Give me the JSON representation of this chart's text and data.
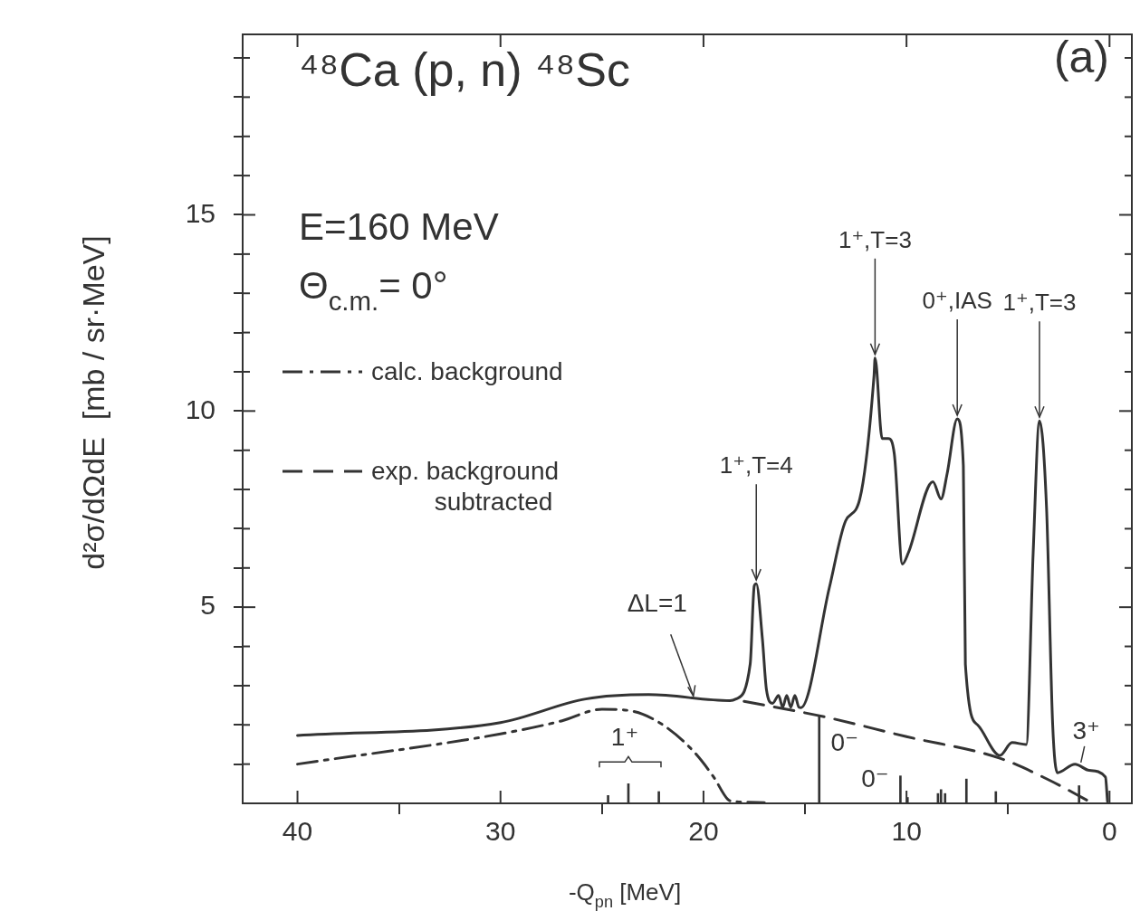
{
  "chart_data": {
    "type": "line",
    "title": "⁴⁸Ca (p, n) ⁴⁸Sc",
    "xlabel": "-Q$_{pn}$ [MeV]",
    "ylabel": "d²σ/dΩdE  [mb / sr·MeV]",
    "xlim": [
      42.7,
      -1.1
    ],
    "ylim": [
      0,
      19.6
    ],
    "xticks": [
      40,
      30,
      20,
      10,
      0
    ],
    "yticks": [
      {
        "value": 1,
        "label": null
      },
      {
        "value": 2,
        "label": null
      },
      {
        "value": 3,
        "label": null
      },
      {
        "value": 4,
        "label": null
      },
      5,
      {
        "value": 6,
        "label": null
      },
      {
        "value": 7,
        "label": null
      },
      {
        "value": 8,
        "label": null
      },
      {
        "value": 9,
        "label": null
      },
      10,
      {
        "value": 11,
        "label": null
      },
      {
        "value": 12,
        "label": null
      },
      {
        "value": 13,
        "label": null
      },
      {
        "value": 14,
        "label": null
      },
      15,
      {
        "value": 16,
        "label": null
      },
      {
        "value": 17,
        "label": null
      },
      {
        "value": 18,
        "label": null
      },
      {
        "value": 19,
        "label": null
      }
    ],
    "grid": false,
    "legend": "left",
    "marker": "none",
    "series": [
      {
        "color": "#333333",
        "line_style": "solid",
        "x": [
          40,
          30,
          25.8,
          22.7,
          18.7,
          18.4,
          17.7,
          17.5,
          17.4,
          17.1,
          16.9,
          16.6,
          16.3,
          16.1,
          15.9,
          15.7,
          15.5,
          15.3,
          15.2,
          13.8,
          13.0,
          12.3,
          11.6,
          11.55,
          11.2,
          10.9,
          10.6,
          10.2,
          9.9,
          8.7,
          8.3,
          8.0,
          7.5,
          7.2,
          7.1,
          6.5,
          5.4,
          4.8,
          4.1,
          3.76,
          3.45,
          3.1,
          2.8,
          2.57,
          1.7,
          1.0,
          0.2,
          0.1
        ],
        "values": [
          1.73,
          2.06,
          2.66,
          2.77,
          2.62,
          2.66,
          3.55,
          5.54,
          5.6,
          4.2,
          2.9,
          2.55,
          2.75,
          2.45,
          2.75,
          2.45,
          2.75,
          2.45,
          2.44,
          5.5,
          7.2,
          7.76,
          10.9,
          11.35,
          9.3,
          9.3,
          8.9,
          6.1,
          6.4,
          8.2,
          7.76,
          8.4,
          9.8,
          8.6,
          3.55,
          2.0,
          1.22,
          1.55,
          1.5,
          6.4,
          9.75,
          7.5,
          2.0,
          0.78,
          1.0,
          0.84,
          0.67,
          0.05
        ]
      },
      {
        "type": "line",
        "name": "calc. background",
        "color": "#333333",
        "line_style": "dashdot",
        "x": [
          40,
          30,
          27,
          25,
          23.5,
          22,
          20.5,
          19.5,
          18.8,
          18.5,
          17
        ],
        "values": [
          1.0,
          1.77,
          2.1,
          2.4,
          2.35,
          2.0,
          1.33,
          0.67,
          0.1,
          0.05,
          0.02
        ]
      },
      {
        "type": "line",
        "name": "exp. background subtracted",
        "color": "#333333",
        "line_style": "dashed",
        "x": [
          18,
          14,
          10,
          5.4,
          3,
          1
        ],
        "values": [
          2.6,
          2.2,
          1.7,
          1.15,
          0.6,
          0.05
        ]
      },
      {
        "type": "bar",
        "color": "#333333",
        "x": [
          24.7,
          23.7,
          22.2,
          14.3,
          10.3,
          9.95,
          8.45,
          8.3,
          8.1,
          7.05,
          5.6,
          1.5
        ],
        "values": [
          0.2,
          0.5,
          0.3,
          2.25,
          0.7,
          0.15,
          0.25,
          0.35,
          0.25,
          0.62,
          0.3,
          0.45
        ]
      }
    ],
    "annotations": [
      "(a)",
      "E=160 MeV",
      "Θ$_{c.m.}$= 0°",
      {
        "text": "1⁺,T=4",
        "x": 17.4,
        "y": 5.6
      },
      {
        "text": "1⁺,T=3",
        "x": 11.55,
        "y": 11.35
      },
      {
        "text": "0⁺,IAS",
        "x": 7.5,
        "y": 9.8
      },
      {
        "text": "1⁺,T=3",
        "x": 3.45,
        "y": 9.75
      },
      {
        "text": "ΔL=1",
        "x": 20.5,
        "y": 2.69
      },
      {
        "text": "1⁺",
        "x": 23.7,
        "y": 0.5
      },
      {
        "text": "0⁻",
        "x": 14.3,
        "y": 2.25
      },
      {
        "text": "0⁻",
        "x": 10.3,
        "y": 0.7
      },
      {
        "text": "3⁺",
        "x": 1.5,
        "y": 0.95
      }
    ]
  }
}
